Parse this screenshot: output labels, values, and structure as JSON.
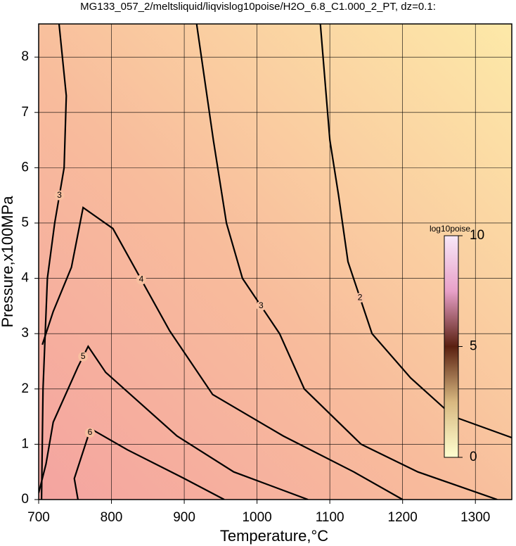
{
  "chart_data": {
    "type": "contour",
    "title": "MG133_057_2/meltsliquid/liqvislog10poise/H2O_6.8_C1.000_2_PT, dz=0.1:",
    "xlabel": "Temperature,°C",
    "ylabel": "Pressure,x100MPa",
    "xlim": [
      700,
      1350
    ],
    "ylim": [
      0,
      8.6
    ],
    "xticks": [
      700,
      800,
      900,
      1000,
      1100,
      1200,
      1300
    ],
    "yticks": [
      0,
      1,
      2,
      3,
      4,
      5,
      6,
      7,
      8
    ],
    "grid": true,
    "line_color": "#000000",
    "contours": [
      {
        "level": 2,
        "x": [
          1087,
          1100,
          1112,
          1125,
          1158,
          1211,
          1270,
          1350
        ],
        "y": [
          8.6,
          6.5,
          5.5,
          4.3,
          3.0,
          2.2,
          1.5,
          1.12
        ]
      },
      {
        "level": 3,
        "x": [
          917,
          940,
          958,
          980,
          1031,
          1065,
          1143,
          1221,
          1330
        ],
        "y": [
          8.6,
          6.5,
          5.0,
          4.0,
          3.0,
          2.0,
          1.0,
          0.5,
          0.0
        ]
      },
      {
        "level": 3,
        "x": [
          728,
          738,
          735,
          722,
          712,
          706,
          704
        ],
        "y": [
          8.6,
          7.3,
          6.0,
          5.0,
          4.0,
          2.0,
          0.0
        ]
      },
      {
        "level": 4,
        "x": [
          705,
          720,
          745,
          761,
          802,
          880,
          939,
          1036,
          1133,
          1200
        ],
        "y": [
          2.8,
          3.4,
          4.2,
          5.28,
          4.9,
          3.05,
          1.9,
          1.15,
          0.5,
          0.0
        ]
      },
      {
        "level": 5,
        "x": [
          700,
          710,
          720,
          754,
          768,
          792,
          890,
          968,
          1070
        ],
        "y": [
          0.12,
          0.64,
          1.4,
          2.4,
          2.77,
          2.3,
          1.15,
          0.5,
          0.0
        ]
      },
      {
        "level": 6,
        "x": [
          754,
          749,
          768,
          773,
          822,
          900,
          955
        ],
        "y": [
          0.0,
          0.38,
          1.15,
          1.27,
          0.9,
          0.38,
          0.0
        ]
      }
    ],
    "colorbar": {
      "label": "log10poise",
      "lim": [
        0,
        10
      ],
      "ticks": [
        0,
        5,
        10
      ]
    }
  }
}
